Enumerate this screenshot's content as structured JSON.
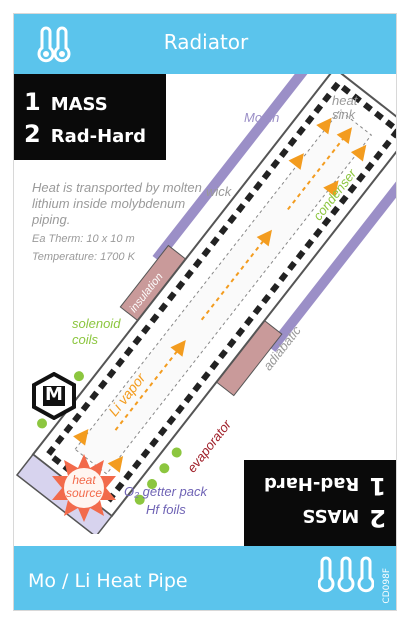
{
  "card": {
    "title": "Radiator",
    "subtitle": "Mo / Li Heat Pipe",
    "code": "CD098F",
    "stats_top": [
      {
        "num": "1",
        "label": "MASS"
      },
      {
        "num": "2",
        "label": "Rad-Hard"
      }
    ],
    "stats_bottom": [
      {
        "num": "1",
        "label": "Rad-Hard"
      },
      {
        "num": "2",
        "label": "MASS"
      }
    ],
    "description": "Heat is transported by molten lithium inside molybdenum piping.",
    "area": "Ea Therm: 10 x 10 m",
    "temperature": "Temperature: 1700 K",
    "logo_letter": "M",
    "labels": {
      "mo_fin": "Mo fin",
      "heat_sink": "heat sink",
      "wick": "wick",
      "condenser": "condenser",
      "insulation": "insulation",
      "adiabatic": "adiabatic",
      "li_vapor": "Li vapor",
      "solenoid": "solenoid coils",
      "evaporator": "evaporator",
      "heat_source": "heat source",
      "getter": "O₂ getter pack",
      "foils": "Hf foils"
    },
    "colors": {
      "accent": "#5bc4ec",
      "fin": "#9b8fc7",
      "insulation": "#c99a9a",
      "coil": "#8cc63f",
      "vapor": "#f39c1f",
      "evaporator": "#a0202a",
      "condenser_label": "#8cc63f",
      "heat_source": "#f26a4b"
    }
  }
}
